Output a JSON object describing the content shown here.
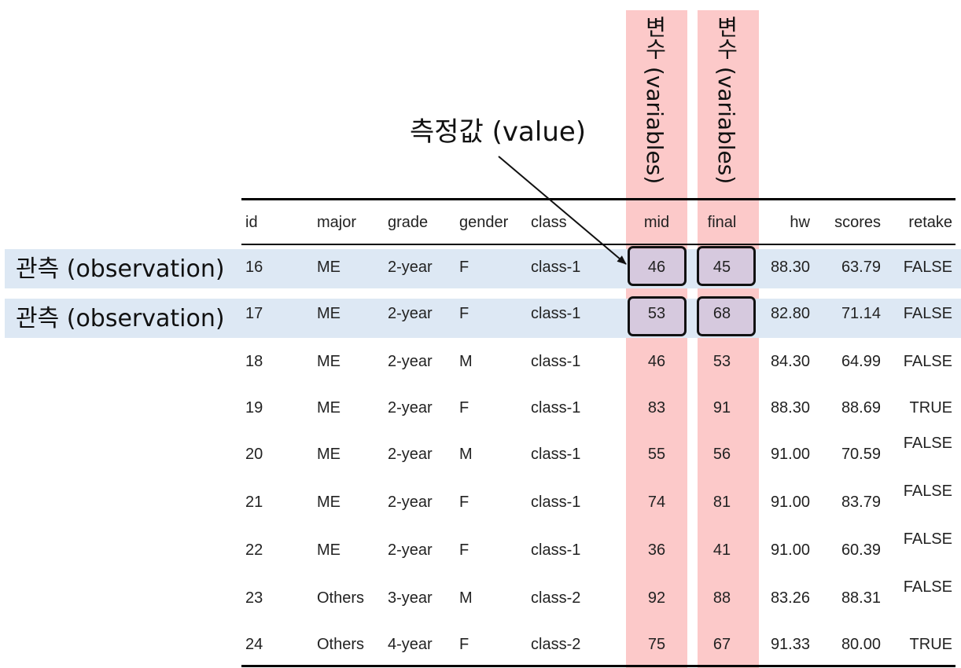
{
  "labels": {
    "variables": "변수 (variables)",
    "value": "측정값 (value)",
    "observation": "관측 (observation)"
  },
  "headers": [
    "id",
    "major",
    "grade",
    "gender",
    "class",
    "mid",
    "final",
    "hw",
    "scores",
    "retake"
  ],
  "rows": [
    [
      "16",
      "ME",
      "2-year",
      "F",
      "class-1",
      "46",
      "45",
      "88.30",
      "63.79",
      "FALSE"
    ],
    [
      "17",
      "ME",
      "2-year",
      "F",
      "class-1",
      "53",
      "68",
      "82.80",
      "71.14",
      "FALSE"
    ],
    [
      "18",
      "ME",
      "2-year",
      "M",
      "class-1",
      "46",
      "53",
      "84.30",
      "64.99",
      "FALSE"
    ],
    [
      "19",
      "ME",
      "2-year",
      "F",
      "class-1",
      "83",
      "91",
      "88.30",
      "88.69",
      "TRUE"
    ],
    [
      "20",
      "ME",
      "2-year",
      "M",
      "class-1",
      "55",
      "56",
      "91.00",
      "70.59",
      "FALSE"
    ],
    [
      "21",
      "ME",
      "2-year",
      "F",
      "class-1",
      "74",
      "81",
      "91.00",
      "83.79",
      "FALSE"
    ],
    [
      "22",
      "ME",
      "2-year",
      "F",
      "class-1",
      "36",
      "41",
      "91.00",
      "60.39",
      "FALSE"
    ],
    [
      "23",
      "Others",
      "3-year",
      "M",
      "class-2",
      "92",
      "88",
      "83.26",
      "88.31",
      "FALSE"
    ],
    [
      "24",
      "Others",
      "4-year",
      "F",
      "class-2",
      "75",
      "67",
      "91.33",
      "80.00",
      "TRUE"
    ]
  ],
  "colors": {
    "variable_band": "#fcc9c9",
    "observation_highlight": "#dde8f4",
    "value_box": "#d8bfd8"
  }
}
